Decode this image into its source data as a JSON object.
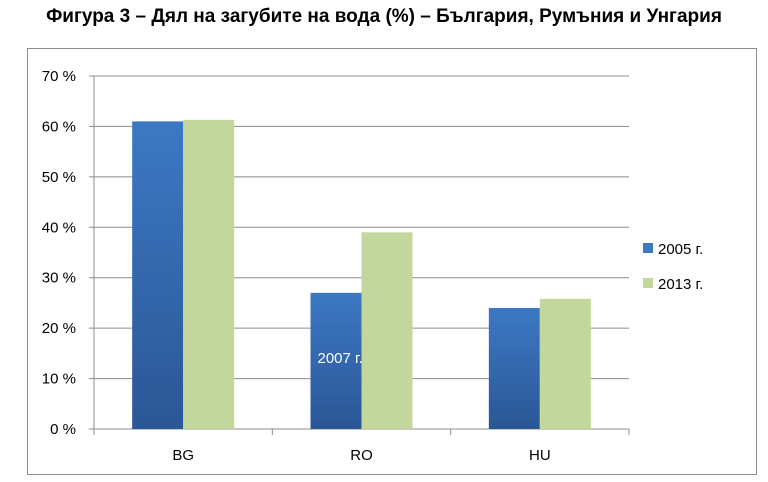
{
  "chart_data": {
    "type": "bar",
    "title": "Фигура 3 – Дял на загубите на вода (%) – България, Румъния и Унгария",
    "categories": [
      "BG",
      "RO",
      "HU"
    ],
    "series": [
      {
        "name": "2005 г.",
        "values": [
          61,
          27,
          24
        ],
        "color": "#3d78c4"
      },
      {
        "name": "2013 г.",
        "values": [
          61.3,
          39,
          25.8
        ],
        "color": "#c3d69b"
      }
    ],
    "ylim": [
      0,
      70
    ],
    "yticks": [
      0,
      10,
      20,
      30,
      40,
      50,
      60,
      70
    ],
    "ytick_labels": [
      "0 %",
      "10 %",
      "20 %",
      "30 %",
      "40 %",
      "50 %",
      "60 %",
      "70 %"
    ],
    "grid": true,
    "legend_position": "right",
    "annotations": [
      {
        "text": "2007 г.",
        "category": "RO",
        "series": 0,
        "y": 14.3
      }
    ]
  }
}
